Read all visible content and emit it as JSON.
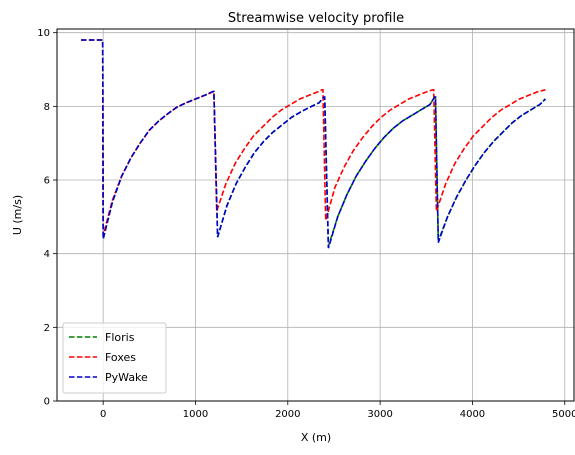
{
  "chart_data": {
    "type": "line",
    "title": "Streamwise velocity profile",
    "xlabel": "X (m)",
    "ylabel": "U (m/s)",
    "xlim": [
      -500,
      5100
    ],
    "ylim": [
      0,
      10.1
    ],
    "xticks": [
      0,
      1000,
      2000,
      3000,
      4000,
      5000
    ],
    "yticks": [
      0,
      2,
      4,
      6,
      8,
      10
    ],
    "grid": true,
    "legend": "lower-left",
    "series": [
      {
        "name": "Floris",
        "color": "#008000",
        "style": "dashed",
        "x": [
          -240,
          -40,
          -5,
          0,
          100,
          200,
          300,
          400,
          500,
          600,
          700,
          800,
          900,
          1000,
          1100,
          1190,
          1200,
          1240,
          1340,
          1440,
          1540,
          1640,
          1740,
          1840,
          1940,
          2040,
          2140,
          2240,
          2340,
          2390,
          2400,
          2440,
          2540,
          2640,
          2740,
          2840,
          2940,
          3040,
          3140,
          3240,
          3340,
          3440,
          3540,
          3590,
          3600,
          3630,
          3730,
          3830,
          3930,
          4030,
          4130,
          4230,
          4330,
          4430,
          4530,
          4630,
          4730,
          4790
        ],
        "y": [
          9.8,
          9.8,
          9.8,
          4.4,
          5.4,
          6.1,
          6.6,
          7.0,
          7.35,
          7.6,
          7.8,
          7.98,
          8.1,
          8.2,
          8.3,
          8.4,
          8.4,
          4.45,
          5.3,
          5.9,
          6.35,
          6.75,
          7.05,
          7.3,
          7.5,
          7.7,
          7.85,
          7.98,
          8.1,
          8.25,
          8.25,
          4.2,
          5.0,
          5.6,
          6.1,
          6.5,
          6.85,
          7.15,
          7.4,
          7.6,
          7.75,
          7.9,
          8.05,
          8.25,
          8.25,
          4.35,
          5.0,
          5.55,
          6.0,
          6.4,
          6.75,
          7.05,
          7.3,
          7.55,
          7.75,
          7.9,
          8.05,
          8.2
        ]
      },
      {
        "name": "Foxes",
        "color": "#ff0000",
        "style": "dashed",
        "x": [
          -240,
          -40,
          -5,
          0,
          100,
          200,
          300,
          400,
          500,
          600,
          700,
          800,
          900,
          1000,
          1100,
          1190,
          1200,
          1230,
          1330,
          1430,
          1530,
          1630,
          1730,
          1830,
          1930,
          2030,
          2130,
          2230,
          2330,
          2370,
          2380,
          2410,
          2510,
          2610,
          2710,
          2810,
          2910,
          3010,
          3110,
          3210,
          3310,
          3410,
          3510,
          3570,
          3580,
          3610,
          3710,
          3810,
          3910,
          4010,
          4110,
          4210,
          4310,
          4410,
          4510,
          4610,
          4710,
          4790
        ],
        "y": [
          9.8,
          9.8,
          9.8,
          4.5,
          5.45,
          6.1,
          6.6,
          7.0,
          7.35,
          7.6,
          7.8,
          7.98,
          8.1,
          8.2,
          8.3,
          8.4,
          8.4,
          5.15,
          5.9,
          6.45,
          6.85,
          7.2,
          7.45,
          7.7,
          7.9,
          8.05,
          8.2,
          8.3,
          8.4,
          8.45,
          8.45,
          4.9,
          5.8,
          6.35,
          6.8,
          7.15,
          7.45,
          7.7,
          7.9,
          8.05,
          8.2,
          8.3,
          8.4,
          8.45,
          8.45,
          5.15,
          5.9,
          6.45,
          6.85,
          7.2,
          7.45,
          7.7,
          7.9,
          8.05,
          8.2,
          8.3,
          8.4,
          8.45
        ]
      },
      {
        "name": "PyWake",
        "color": "#0000cc",
        "style": "dashed",
        "x": [
          -240,
          -40,
          -5,
          0,
          100,
          200,
          300,
          400,
          500,
          600,
          700,
          800,
          900,
          1000,
          1100,
          1190,
          1200,
          1240,
          1340,
          1440,
          1540,
          1640,
          1740,
          1840,
          1940,
          2040,
          2140,
          2240,
          2340,
          2390,
          2400,
          2440,
          2540,
          2640,
          2740,
          2840,
          2940,
          3040,
          3140,
          3240,
          3340,
          3440,
          3540,
          3590,
          3600,
          3630,
          3730,
          3830,
          3930,
          4030,
          4130,
          4230,
          4330,
          4430,
          4530,
          4630,
          4730,
          4790
        ],
        "y": [
          9.8,
          9.8,
          9.8,
          4.4,
          5.4,
          6.1,
          6.6,
          7.0,
          7.35,
          7.6,
          7.8,
          7.98,
          8.1,
          8.2,
          8.3,
          8.4,
          8.4,
          4.45,
          5.3,
          5.9,
          6.35,
          6.75,
          7.05,
          7.3,
          7.5,
          7.7,
          7.85,
          7.98,
          8.1,
          8.25,
          8.25,
          4.15,
          5.0,
          5.6,
          6.1,
          6.5,
          6.85,
          7.15,
          7.4,
          7.6,
          7.75,
          7.9,
          8.05,
          8.25,
          8.25,
          4.3,
          5.0,
          5.55,
          6.0,
          6.4,
          6.75,
          7.05,
          7.3,
          7.55,
          7.75,
          7.9,
          8.05,
          8.2
        ]
      }
    ]
  }
}
